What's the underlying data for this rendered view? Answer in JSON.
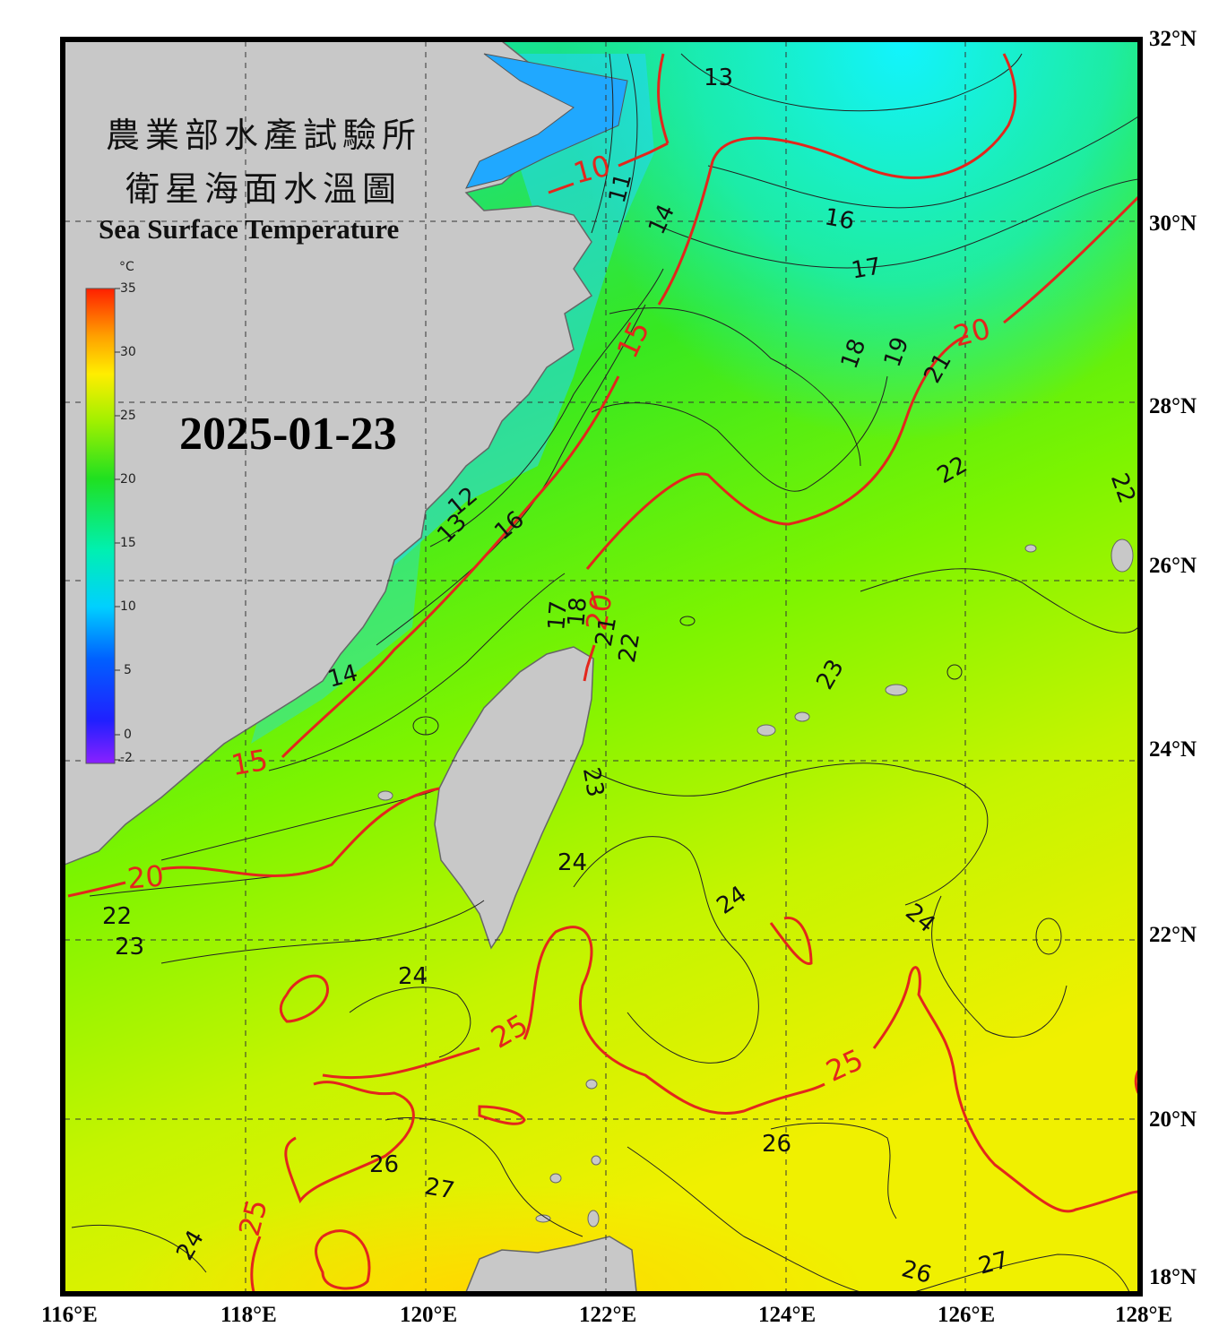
{
  "title": {
    "line1": "農業部水產試驗所",
    "line2": "衛星海面水溫圖",
    "english": "Sea Surface Temperature"
  },
  "date": "2025-01-23",
  "colorbar": {
    "unit": "°C",
    "ticks": [
      "35",
      "30",
      "25",
      "20",
      "15",
      "10",
      "5",
      "0",
      "-2"
    ]
  },
  "axes": {
    "lon_labels": [
      "116°E",
      "118°E",
      "120°E",
      "122°E",
      "124°E",
      "126°E",
      "128°E"
    ],
    "lat_labels": [
      "32°N",
      "30°N",
      "28°N",
      "26°N",
      "24°N",
      "22°N",
      "20°N",
      "18°N"
    ]
  },
  "isotherm_labels": {
    "major": [
      "10",
      "15",
      "15",
      "20",
      "20",
      "20",
      "25",
      "25",
      "25"
    ],
    "minor": [
      "13",
      "16",
      "17",
      "18",
      "19",
      "21",
      "22",
      "22",
      "11",
      "14",
      "12",
      "13",
      "16",
      "14",
      "22",
      "23",
      "23",
      "24",
      "24",
      "24",
      "24",
      "26",
      "26",
      "27",
      "24",
      "26",
      "27",
      "23",
      "17",
      "18",
      "21",
      "22"
    ]
  },
  "colors": {
    "land": "#c8c8c8",
    "frame": "#000000",
    "major_isotherm": "#e3261c",
    "minor_isotherm": "#222222"
  }
}
